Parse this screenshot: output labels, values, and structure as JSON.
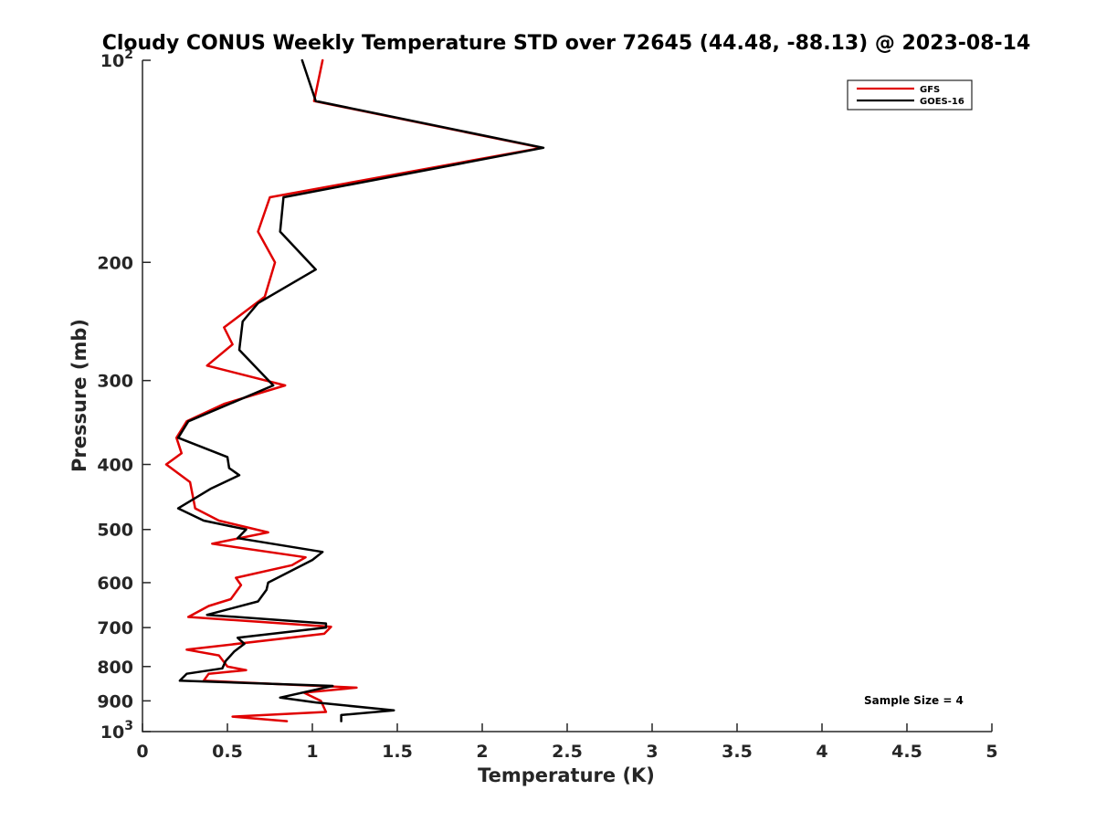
{
  "chart_data": {
    "type": "line",
    "title": "Cloudy CONUS Weekly Temperature STD over 72645 (44.48, -88.13) @ 2023-08-14",
    "xlabel": "Temperature (K)",
    "ylabel": "Pressure (mb)",
    "xlim": [
      0,
      5
    ],
    "ylim": [
      100,
      1000
    ],
    "y_scale": "log",
    "y_reversed": true,
    "x_ticks": [
      "0",
      "0.5",
      "1",
      "1.5",
      "2",
      "2.5",
      "3",
      "3.5",
      "4",
      "4.5",
      "5"
    ],
    "y_ticks": [
      {
        "value": 100,
        "base": "10",
        "exp": "2"
      },
      {
        "value": 200,
        "label": "200"
      },
      {
        "value": 300,
        "label": "300"
      },
      {
        "value": 400,
        "label": "400"
      },
      {
        "value": 500,
        "label": "500"
      },
      {
        "value": 600,
        "label": "600"
      },
      {
        "value": 700,
        "label": "700"
      },
      {
        "value": 800,
        "label": "800"
      },
      {
        "value": 900,
        "label": "900"
      },
      {
        "value": 1000,
        "base": "10",
        "exp": "3"
      }
    ],
    "grid": false,
    "legend_position": "top-right",
    "annotation": "Sample Size = 4",
    "series": [
      {
        "name": "GFS",
        "color": "#e00000",
        "points": [
          [
            1.06,
            100
          ],
          [
            1.01,
            115
          ],
          [
            2.35,
            135
          ],
          [
            0.75,
            160
          ],
          [
            0.68,
            180
          ],
          [
            0.78,
            200
          ],
          [
            0.72,
            225
          ],
          [
            0.48,
            250
          ],
          [
            0.53,
            265
          ],
          [
            0.38,
            285
          ],
          [
            0.84,
            305
          ],
          [
            0.48,
            325
          ],
          [
            0.26,
            345
          ],
          [
            0.2,
            365
          ],
          [
            0.23,
            385
          ],
          [
            0.14,
            400
          ],
          [
            0.28,
            425
          ],
          [
            0.31,
            465
          ],
          [
            0.45,
            485
          ],
          [
            0.74,
            505
          ],
          [
            0.41,
            525
          ],
          [
            0.96,
            550
          ],
          [
            0.88,
            565
          ],
          [
            0.55,
            590
          ],
          [
            0.58,
            605
          ],
          [
            0.52,
            635
          ],
          [
            0.39,
            650
          ],
          [
            0.27,
            675
          ],
          [
            1.11,
            698
          ],
          [
            1.07,
            715
          ],
          [
            0.26,
            755
          ],
          [
            0.45,
            770
          ],
          [
            0.5,
            800
          ],
          [
            0.61,
            810
          ],
          [
            0.39,
            820
          ],
          [
            0.36,
            840
          ],
          [
            1.26,
            860
          ],
          [
            0.95,
            875
          ],
          [
            1.05,
            900
          ],
          [
            1.08,
            935
          ],
          [
            0.53,
            950
          ],
          [
            0.85,
            965
          ]
        ]
      },
      {
        "name": "GOES-16",
        "color": "#000000",
        "points": [
          [
            0.94,
            100
          ],
          [
            1.02,
            115
          ],
          [
            2.36,
            135
          ],
          [
            0.83,
            160
          ],
          [
            0.81,
            180
          ],
          [
            1.02,
            205
          ],
          [
            0.68,
            230
          ],
          [
            0.59,
            245
          ],
          [
            0.57,
            270
          ],
          [
            0.77,
            305
          ],
          [
            0.27,
            345
          ],
          [
            0.21,
            365
          ],
          [
            0.5,
            390
          ],
          [
            0.51,
            405
          ],
          [
            0.57,
            415
          ],
          [
            0.4,
            435
          ],
          [
            0.21,
            465
          ],
          [
            0.36,
            485
          ],
          [
            0.61,
            500
          ],
          [
            0.56,
            515
          ],
          [
            1.06,
            540
          ],
          [
            1.0,
            555
          ],
          [
            0.74,
            600
          ],
          [
            0.73,
            615
          ],
          [
            0.68,
            640
          ],
          [
            0.38,
            670
          ],
          [
            1.08,
            690
          ],
          [
            1.08,
            700
          ],
          [
            0.56,
            725
          ],
          [
            0.6,
            740
          ],
          [
            0.54,
            760
          ],
          [
            0.49,
            785
          ],
          [
            0.47,
            805
          ],
          [
            0.26,
            820
          ],
          [
            0.22,
            840
          ],
          [
            1.12,
            855
          ],
          [
            0.81,
            890
          ],
          [
            1.02,
            905
          ],
          [
            1.48,
            930
          ],
          [
            1.17,
            945
          ],
          [
            1.17,
            965
          ]
        ]
      }
    ]
  }
}
